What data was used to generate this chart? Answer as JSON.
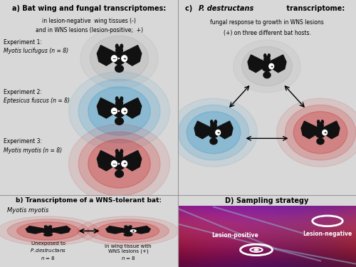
{
  "bg_color": "#d8d8d8",
  "panel_a_bg": "#e0e0e0",
  "panel_b_bg": "#ebebeb",
  "panel_c_bg": "#e0e0e0",
  "panel_d_title_bg": "#e0e0e0",
  "title_a": "a) Bat wing and fungal transcriptomes:",
  "subtitle_a1": "in lesion-negative  wing tissues (-)",
  "subtitle_a2": "and in WNS lesions (lesion-positive;  +)",
  "exp1_label1": "Experiment 1:",
  "exp1_label2": "Myotis lucifugus (n = 8)",
  "exp2_label1": "Experiment 2:",
  "exp2_label2": "Eptesicus fuscus (n = 8)",
  "exp3_label1": "Experiment 3:",
  "exp3_label2": "Myotis myotis (n = 8)",
  "title_b": "b) Transcriptome of a WNS-tolerant bat:",
  "subtitle_b": "Myotis myotis",
  "label_b1": "Unexposed to\nP. destructans\nn = 8",
  "label_b2": "In wing tissue with\nWNS lesions (+)\nn = 8",
  "title_c_prefix": "c) ",
  "title_c_italic": "P. destructans",
  "title_c_suffix": " transcriptome:",
  "subtitle_c1": "fungal response to growth in WNS lesions",
  "subtitle_c2": "(+) on three different bat hosts.",
  "title_d": "D) Sampling strategy",
  "label_lesion_neg": "Lesion-negative",
  "label_lesion_pos": "Lesion-positive",
  "bat_color": "#111111",
  "glow_none": "gray",
  "glow_blue": "#3399cc",
  "glow_red": "#cc2222"
}
